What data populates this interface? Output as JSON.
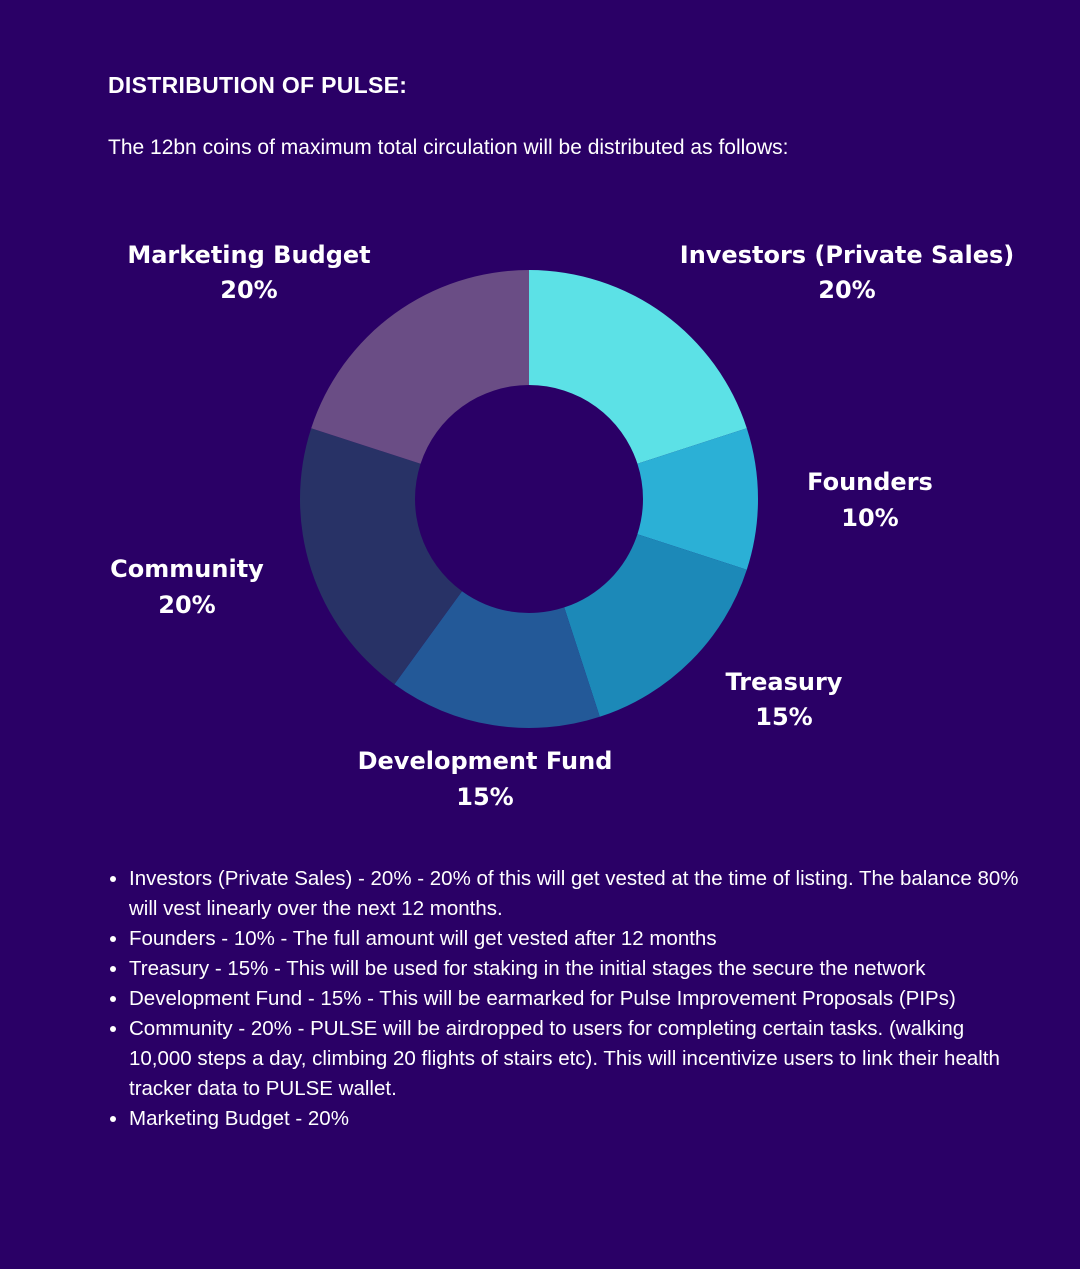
{
  "header": {
    "title": "DISTRIBUTION OF PULSE:",
    "intro": "The 12bn coins of maximum total circulation will be distributed as follows:"
  },
  "chart_data": {
    "type": "pie",
    "donut": true,
    "categories": [
      "Investors (Private Sales)",
      "Founders",
      "Treasury",
      "Development Fund",
      "Community",
      "Marketing Budget"
    ],
    "values": [
      20,
      10,
      15,
      15,
      20,
      20
    ],
    "labels": [
      "20%",
      "10%",
      "15%",
      "15%",
      "20%",
      "20%"
    ],
    "colors": [
      "#5ce1e6",
      "#2bb0d6",
      "#1c89b8",
      "#235998",
      "#283266",
      "#6a4d85"
    ],
    "start": "12 o'clock",
    "direction": "clockwise"
  },
  "notes": [
    "Investors (Private Sales) - 20% - 20% of this will get vested at the time of listing. The balance 80% will vest linearly over the next 12 months.",
    "Founders - 10% - The full amount will get vested after 12 months",
    "Treasury - 15% - This will be used for staking in the initial stages the secure the network",
    "Development Fund - 15% - This will be earmarked for Pulse Improvement Proposals (PIPs)",
    "Community - 20% - PULSE will be airdropped to users for completing certain tasks. (walking 10,000 steps a day, climbing 20 flights of stairs etc). This will incentivize users to link their health tracker data to PULSE wallet.",
    "Marketing Budget - 20%"
  ]
}
